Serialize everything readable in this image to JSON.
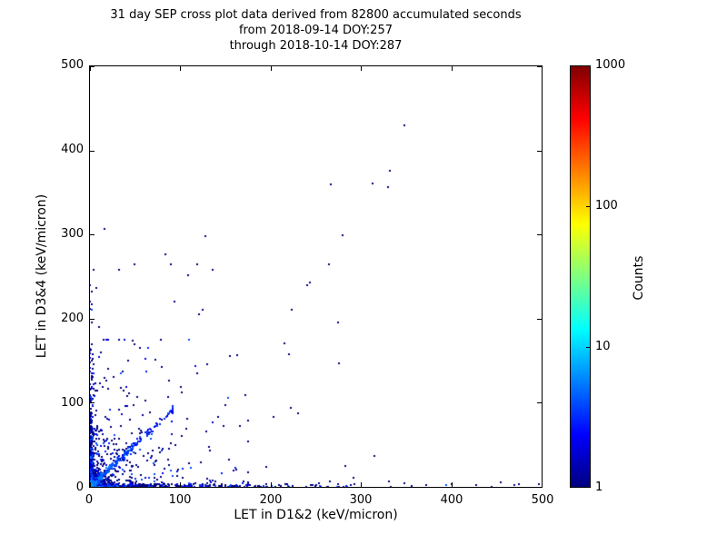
{
  "chart_data": {
    "type": "scatter",
    "subtype": "2d-histogram-cross-plot",
    "title_lines": [
      "31 day SEP cross plot data derived from 82800 accumulated seconds",
      "from 2018-09-14 DOY:257",
      "through 2018-10-14 DOY:287"
    ],
    "xlabel": "LET in D1&2 (keV/micron)",
    "ylabel": "LET in D3&4 (keV/micron)",
    "xlim": [
      0,
      500
    ],
    "ylim": [
      0,
      500
    ],
    "x_ticks": [
      0,
      100,
      200,
      300,
      400,
      500
    ],
    "y_ticks": [
      0,
      100,
      200,
      300,
      400,
      500
    ],
    "grid": false,
    "frame_color": "#000000",
    "background_color": "#ffffff",
    "colorbar": {
      "label": "Counts",
      "scale": "log",
      "min": 1,
      "max": 1000,
      "ticks": [
        1,
        10,
        100,
        1000
      ],
      "colormap": "jet",
      "gradient_stops": [
        [
          "#000080",
          0
        ],
        [
          "#0000ff",
          0.125
        ],
        [
          "#00ffff",
          0.375
        ],
        [
          "#ffff00",
          0.625
        ],
        [
          "#ff0000",
          0.875
        ],
        [
          "#800000",
          1
        ]
      ]
    },
    "isolated_points": [
      [
        348,
        430
      ],
      [
        332,
        376
      ],
      [
        330,
        356
      ],
      [
        313,
        361
      ],
      [
        267,
        360
      ],
      [
        280,
        299
      ],
      [
        16,
        307
      ],
      [
        128,
        298
      ],
      [
        83,
        276
      ],
      [
        240,
        240
      ],
      [
        243,
        243
      ],
      [
        223,
        211
      ],
      [
        125,
        211
      ],
      [
        121,
        205
      ],
      [
        94,
        220
      ],
      [
        275,
        195
      ],
      [
        49,
        170
      ],
      [
        163,
        157
      ],
      [
        155,
        155
      ],
      [
        276,
        147
      ],
      [
        130,
        146
      ],
      [
        119,
        135
      ],
      [
        88,
        126
      ],
      [
        101,
        119
      ],
      [
        102,
        112
      ],
      [
        172,
        109
      ],
      [
        222,
        94
      ],
      [
        203,
        83
      ],
      [
        150,
        97
      ],
      [
        142,
        83
      ],
      [
        315,
        37
      ],
      [
        283,
        25
      ],
      [
        292,
        11
      ],
      [
        162,
        21
      ],
      [
        254,
        4
      ],
      [
        266,
        6
      ],
      [
        293,
        3
      ],
      [
        331,
        7
      ],
      [
        348,
        4
      ],
      [
        372,
        2
      ],
      [
        400,
        3
      ],
      [
        428,
        2
      ],
      [
        455,
        5
      ],
      [
        470,
        2
      ],
      [
        497,
        3
      ],
      [
        7,
        237
      ],
      [
        10,
        190
      ],
      [
        12,
        160
      ]
    ],
    "dense_regions": {
      "origin_hotspot": {
        "n": 700,
        "scale": 5.5,
        "max": 55,
        "count_amp": 250,
        "count_falloff": 2.2
      },
      "lower_left_scatter": {
        "n": 340,
        "scale": 40,
        "max": 175,
        "boost_amp": 16,
        "boost_falloff": 12
      },
      "mid_scatter": {
        "n": 45,
        "scale": 85,
        "max": 265
      },
      "y_axis_band": {
        "n": 330,
        "x_max": 5,
        "y_scale": 55,
        "y_max": 258
      },
      "x_axis_band": {
        "n": 400,
        "y_max": 5,
        "x_scale": 75,
        "x_max": 497
      },
      "diagonal_band": {
        "n": 270,
        "scale": 38,
        "max": 92,
        "spread": 4.5
      }
    },
    "render": {
      "seed": 42,
      "point_size": 2
    }
  }
}
